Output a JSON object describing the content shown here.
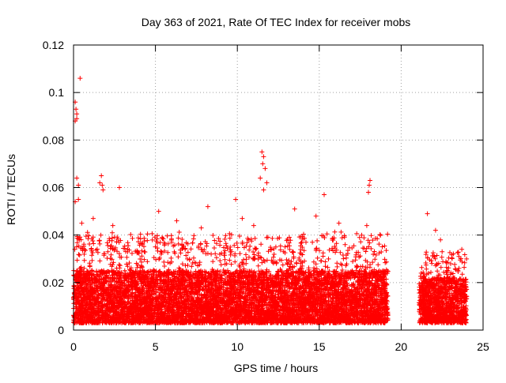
{
  "chart_data": {
    "type": "scatter",
    "title": "Day 363 of 2021, Rate Of TEC Index for receiver mobs",
    "xlabel": "GPS time / hours",
    "ylabel": "ROTI / TECUs",
    "xlim": [
      0,
      25
    ],
    "ylim": [
      0,
      0.12
    ],
    "x_ticks": [
      0,
      5,
      10,
      15,
      20,
      25
    ],
    "x_tick_labels": [
      "0",
      "5",
      "10",
      "15",
      "20",
      "25"
    ],
    "y_ticks": [
      0,
      0.02,
      0.04,
      0.06,
      0.08,
      0.1,
      0.12
    ],
    "y_tick_labels": [
      "0",
      "0.02",
      "0.04",
      "0.06",
      "0.08",
      "0.1",
      "0.12"
    ],
    "grid": true,
    "marker": "+",
    "color": "#ff0000",
    "series": [
      {
        "name": "",
        "data_segments": [
          {
            "x_start": 0.0,
            "x_end": 19.2,
            "typical_min": 0.003,
            "typical_max": 0.025,
            "common_peak": 0.04
          },
          {
            "x_start": 21.1,
            "x_end": 24.0,
            "typical_min": 0.003,
            "typical_max": 0.022,
            "common_peak": 0.033
          }
        ],
        "outliers": [
          [
            0.1,
            0.096
          ],
          [
            0.15,
            0.093
          ],
          [
            0.2,
            0.091
          ],
          [
            0.1,
            0.088
          ],
          [
            0.2,
            0.089
          ],
          [
            0.4,
            0.106
          ],
          [
            0.2,
            0.064
          ],
          [
            0.3,
            0.061
          ],
          [
            0.3,
            0.055
          ],
          [
            0.1,
            0.054
          ],
          [
            0.5,
            0.045
          ],
          [
            1.2,
            0.047
          ],
          [
            1.6,
            0.062
          ],
          [
            1.7,
            0.065
          ],
          [
            1.75,
            0.061
          ],
          [
            1.8,
            0.059
          ],
          [
            2.8,
            0.06
          ],
          [
            2.4,
            0.044
          ],
          [
            5.2,
            0.05
          ],
          [
            6.3,
            0.046
          ],
          [
            7.8,
            0.043
          ],
          [
            8.2,
            0.052
          ],
          [
            9.9,
            0.055
          ],
          [
            10.3,
            0.047
          ],
          [
            11.0,
            0.044
          ],
          [
            11.5,
            0.075
          ],
          [
            11.6,
            0.073
          ],
          [
            11.55,
            0.07
          ],
          [
            11.7,
            0.068
          ],
          [
            11.4,
            0.064
          ],
          [
            11.8,
            0.062
          ],
          [
            11.6,
            0.059
          ],
          [
            13.5,
            0.051
          ],
          [
            14.8,
            0.048
          ],
          [
            15.3,
            0.057
          ],
          [
            16.2,
            0.045
          ],
          [
            18.1,
            0.063
          ],
          [
            18.05,
            0.061
          ],
          [
            18.0,
            0.058
          ],
          [
            17.9,
            0.044
          ],
          [
            21.6,
            0.049
          ],
          [
            22.1,
            0.042
          ],
          [
            22.4,
            0.038
          ],
          [
            23.7,
            0.034
          ]
        ]
      }
    ]
  }
}
